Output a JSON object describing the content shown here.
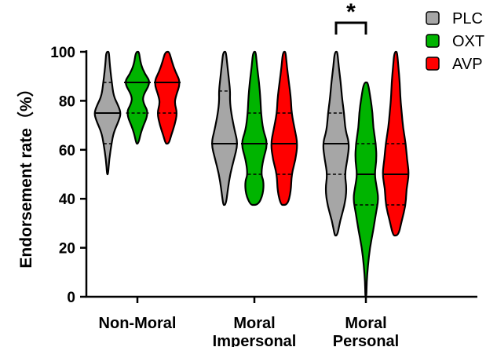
{
  "chart_data": {
    "type": "violin",
    "ylabel": "Endorsement rate（%）",
    "ylim": [
      0,
      100
    ],
    "yticks": [
      0,
      20,
      40,
      60,
      80,
      100
    ],
    "categories": [
      {
        "lines": [
          "Non-Moral"
        ]
      },
      {
        "lines": [
          "Moral",
          "Impersonal"
        ]
      },
      {
        "lines": [
          "Moral",
          "Personal"
        ]
      }
    ],
    "series": [
      {
        "name": "PLC",
        "color": "#a6a6a6"
      },
      {
        "name": "OXT",
        "color": "#00b400"
      },
      {
        "name": "AVP",
        "color": "#ff0000"
      }
    ],
    "legend_position": "top-right",
    "violins": [
      {
        "category": 0,
        "series": 0,
        "min": 50,
        "max": 100,
        "median": 75,
        "q1": 62.5,
        "q3": 87.5,
        "profile": [
          [
            50,
            0.04
          ],
          [
            56,
            0.12
          ],
          [
            62.5,
            0.3
          ],
          [
            67,
            0.45
          ],
          [
            72,
            0.85
          ],
          [
            75,
            1
          ],
          [
            78,
            0.8
          ],
          [
            82,
            0.45
          ],
          [
            87.5,
            0.32
          ],
          [
            92,
            0.22
          ],
          [
            96,
            0.15
          ],
          [
            100,
            0.1
          ]
        ]
      },
      {
        "category": 0,
        "series": 1,
        "min": 62.5,
        "max": 100,
        "median": 87.5,
        "q1": 75,
        "q3": 87.5,
        "profile": [
          [
            62.5,
            0.08
          ],
          [
            68,
            0.3
          ],
          [
            75,
            0.85
          ],
          [
            79,
            0.45
          ],
          [
            82,
            0.4
          ],
          [
            87.5,
            1
          ],
          [
            91,
            0.55
          ],
          [
            95,
            0.25
          ],
          [
            100,
            0.12
          ]
        ]
      },
      {
        "category": 0,
        "series": 2,
        "min": 62.5,
        "max": 100,
        "median": 87.5,
        "q1": 75,
        "q3": 87.5,
        "profile": [
          [
            62.5,
            0.12
          ],
          [
            66,
            0.3
          ],
          [
            70,
            0.55
          ],
          [
            75,
            0.75
          ],
          [
            79,
            0.55
          ],
          [
            82,
            0.65
          ],
          [
            87.5,
            1
          ],
          [
            92,
            0.6
          ],
          [
            96,
            0.35
          ],
          [
            100,
            0.15
          ]
        ]
      },
      {
        "category": 1,
        "series": 0,
        "min": 37.5,
        "max": 100,
        "median": 62.5,
        "q1": 62.5,
        "q3": 84,
        "profile": [
          [
            37.5,
            0.1
          ],
          [
            44,
            0.25
          ],
          [
            50,
            0.42
          ],
          [
            56,
            0.7
          ],
          [
            62.5,
            1
          ],
          [
            68,
            0.75
          ],
          [
            75,
            0.5
          ],
          [
            80,
            0.4
          ],
          [
            84,
            0.42
          ],
          [
            90,
            0.3
          ],
          [
            95,
            0.2
          ],
          [
            100,
            0.1
          ]
        ]
      },
      {
        "category": 1,
        "series": 1,
        "min": 37.5,
        "max": 100,
        "median": 62.5,
        "q1": 50,
        "q3": 75,
        "profile": [
          [
            37.5,
            0.3
          ],
          [
            42,
            0.65
          ],
          [
            47,
            0.7
          ],
          [
            50,
            0.5
          ],
          [
            56,
            0.65
          ],
          [
            62.5,
            1
          ],
          [
            68,
            0.65
          ],
          [
            75,
            0.5
          ],
          [
            81,
            0.45
          ],
          [
            87.5,
            0.35
          ],
          [
            94,
            0.2
          ],
          [
            100,
            0.1
          ]
        ]
      },
      {
        "category": 1,
        "series": 2,
        "min": 37.5,
        "max": 100,
        "median": 62.5,
        "q1": 50,
        "q3": 75,
        "profile": [
          [
            37.5,
            0.25
          ],
          [
            43,
            0.5
          ],
          [
            50,
            0.55
          ],
          [
            56,
            0.85
          ],
          [
            62.5,
            1
          ],
          [
            68,
            0.8
          ],
          [
            75,
            0.55
          ],
          [
            81,
            0.5
          ],
          [
            87.5,
            0.35
          ],
          [
            94,
            0.2
          ],
          [
            100,
            0.1
          ]
        ]
      },
      {
        "category": 2,
        "series": 0,
        "min": 25,
        "max": 100,
        "median": 62.5,
        "q1": 50,
        "q3": 75,
        "profile": [
          [
            25,
            0.1
          ],
          [
            31,
            0.3
          ],
          [
            37.5,
            0.65
          ],
          [
            44,
            0.8
          ],
          [
            50,
            0.65
          ],
          [
            56,
            0.85
          ],
          [
            62.5,
            1
          ],
          [
            68,
            0.7
          ],
          [
            75,
            0.6
          ],
          [
            81,
            0.45
          ],
          [
            87.5,
            0.35
          ],
          [
            94,
            0.2
          ],
          [
            100,
            0.1
          ]
        ]
      },
      {
        "category": 2,
        "series": 1,
        "min": 0,
        "max": 87.5,
        "median": 50,
        "q1": 37.5,
        "q3": 62.5,
        "profile": [
          [
            0,
            0.04
          ],
          [
            6,
            0.06
          ],
          [
            12.5,
            0.15
          ],
          [
            20,
            0.3
          ],
          [
            27,
            0.55
          ],
          [
            34,
            0.75
          ],
          [
            40,
            0.95
          ],
          [
            45,
            0.8
          ],
          [
            50,
            0.65
          ],
          [
            56,
            0.8
          ],
          [
            62.5,
            0.75
          ],
          [
            69,
            0.55
          ],
          [
            75,
            0.5
          ],
          [
            81,
            0.35
          ],
          [
            87.5,
            0.15
          ]
        ]
      },
      {
        "category": 2,
        "series": 2,
        "min": 25,
        "max": 100,
        "median": 50,
        "q1": 37.5,
        "q3": 62.5,
        "profile": [
          [
            25,
            0.2
          ],
          [
            31,
            0.45
          ],
          [
            37.5,
            0.75
          ],
          [
            44,
            0.8
          ],
          [
            50,
            1
          ],
          [
            56,
            0.85
          ],
          [
            62.5,
            0.75
          ],
          [
            69,
            0.55
          ],
          [
            75,
            0.45
          ],
          [
            81,
            0.35
          ],
          [
            87.5,
            0.3
          ],
          [
            94,
            0.2
          ],
          [
            100,
            0.1
          ]
        ]
      }
    ],
    "significance": [
      {
        "category": 2,
        "from_series": 0,
        "to_series": 1,
        "label": "*"
      }
    ]
  }
}
